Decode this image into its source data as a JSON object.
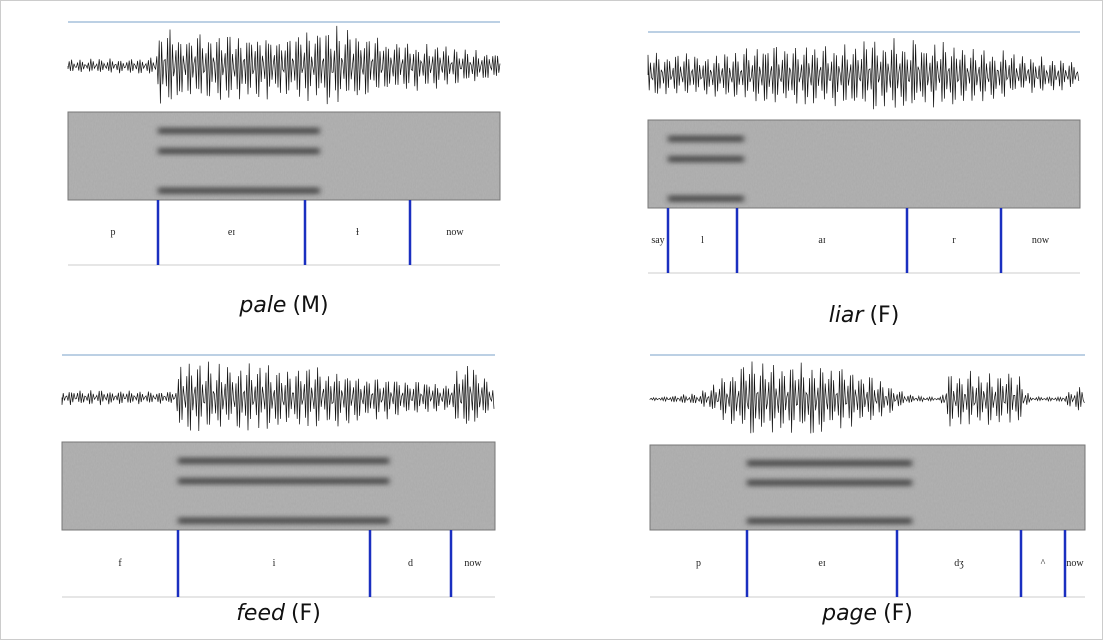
{
  "panels": [
    {
      "word": "pale",
      "speaker": "(M)",
      "segments": [
        "p",
        "eɪ",
        "ɫ",
        "now"
      ]
    },
    {
      "word": "liar",
      "speaker": "(F)",
      "segments": [
        "say",
        "l",
        "aɪ",
        "r",
        "now"
      ]
    },
    {
      "word": "feed",
      "speaker": "(F)",
      "segments": [
        "f",
        "i",
        "d",
        "now"
      ]
    },
    {
      "word": "page",
      "speaker": "(F)",
      "segments": [
        "p",
        "eɪ",
        "dʒ",
        "^",
        "now"
      ]
    }
  ]
}
